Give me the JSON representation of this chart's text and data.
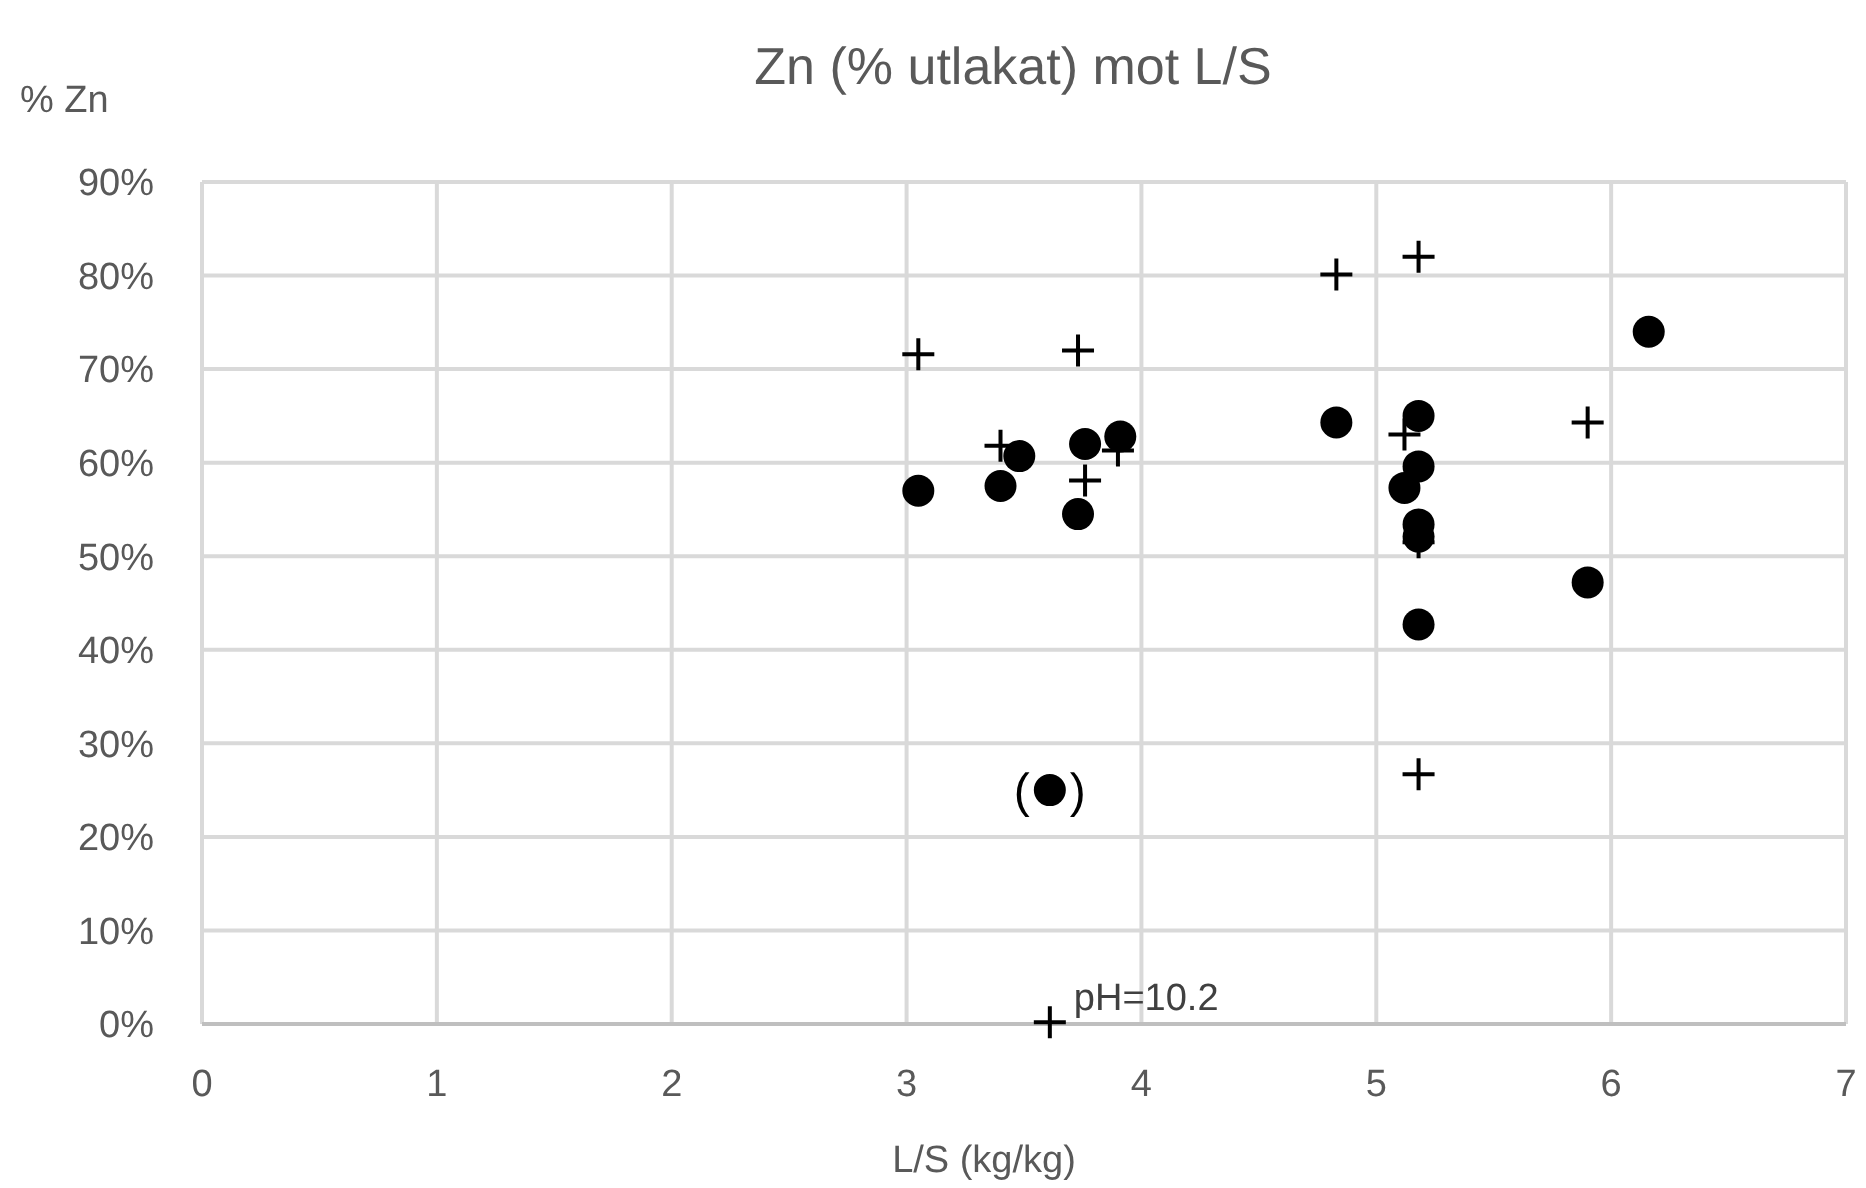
{
  "chart_data": {
    "type": "scatter",
    "title": "Zn (% utlakat) mot L/S",
    "xlabel": "L/S (kg/kg)",
    "ylabel": "% Zn",
    "xlim": [
      0,
      7
    ],
    "xticks": [
      0,
      1,
      2,
      3,
      4,
      5,
      6,
      7
    ],
    "ylim": [
      0,
      90
    ],
    "yticks": [
      {
        "value": 0,
        "label": "0%"
      },
      {
        "value": 10,
        "label": "10%"
      },
      {
        "value": 20,
        "label": "20%"
      },
      {
        "value": 30,
        "label": "30%"
      },
      {
        "value": 40,
        "label": "40%"
      },
      {
        "value": 50,
        "label": "50%"
      },
      {
        "value": 60,
        "label": "60%"
      },
      {
        "value": 70,
        "label": "70%"
      },
      {
        "value": 80,
        "label": "80%"
      },
      {
        "value": 90,
        "label": "90%"
      }
    ],
    "grid": true,
    "series": [
      {
        "color": "#000000",
        "marker": "circle",
        "x": [
          3.05,
          3.4,
          3.48,
          3.73,
          3.76,
          3.91,
          4.83,
          5.18,
          5.18,
          5.12,
          5.18,
          5.18,
          5.18,
          5.9,
          6.16,
          3.61
        ],
        "values": [
          57,
          57.5,
          60.7,
          54.5,
          62,
          62.8,
          64.3,
          65,
          59.6,
          57.3,
          53.4,
          52.1,
          42.7,
          47.2,
          74,
          25
        ]
      },
      {
        "color": "#000000",
        "marker": "cross",
        "x": [
          3.05,
          3.73,
          3.4,
          3.76,
          3.9,
          4.83,
          5.18,
          5.12,
          5.9,
          5.18,
          5.18,
          3.61
        ],
        "values": [
          71.6,
          72,
          61.8,
          58.1,
          61.3,
          80.1,
          82,
          63,
          64.3,
          51.5,
          26.7,
          0.2
        ]
      }
    ],
    "annotations": [
      {
        "text": "(   )",
        "x": 3.61,
        "y": 25
      },
      {
        "text": "pH=10.2",
        "x": 3.61,
        "y": 0.2
      }
    ]
  }
}
